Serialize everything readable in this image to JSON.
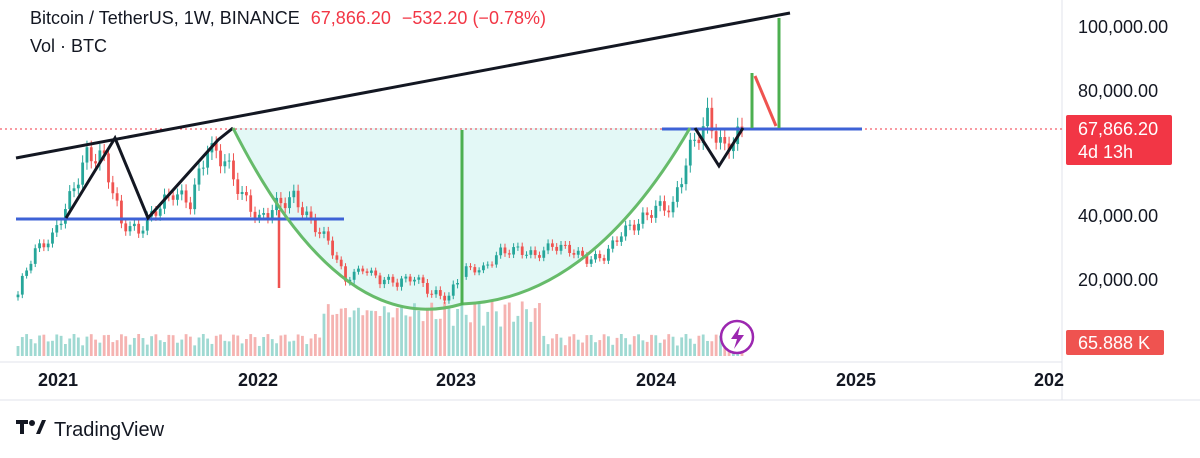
{
  "header": {
    "symbol": "Bitcoin / TetherUS, 1W, BINANCE",
    "price": "67,866.20",
    "change": "−532.20 (−0.78%)",
    "volume_label": "Vol · BTC"
  },
  "price_tag": {
    "price": "67,866.20",
    "countdown": "4d 13h"
  },
  "volume_tag": "65.888 K",
  "footer": {
    "brand": "TradingView"
  },
  "colors": {
    "up": "#26a69a",
    "down": "#ef5350",
    "tag": "#f23645",
    "cup": "#66bb6a",
    "support": "#3d62d6",
    "trend": "#131722"
  },
  "chart_data": {
    "type": "candlestick",
    "y_ticks": [
      "100,000.00",
      "80,000.00",
      "40,000.00",
      "20,000.00"
    ],
    "x_ticks": [
      "2021",
      "2022",
      "2023",
      "2024",
      "2025",
      "202"
    ],
    "last_price": 67866.2,
    "series_close": [
      {
        "date": "2020-11",
        "close": 17000
      },
      {
        "date": "2020-12",
        "close": 28900
      },
      {
        "date": "2021-01",
        "close": 33100
      },
      {
        "date": "2021-02",
        "close": 45200
      },
      {
        "date": "2021-03",
        "close": 58800
      },
      {
        "date": "2021-04",
        "close": 57700
      },
      {
        "date": "2021-05",
        "close": 37300
      },
      {
        "date": "2021-06",
        "close": 35000
      },
      {
        "date": "2021-07",
        "close": 41500
      },
      {
        "date": "2021-08",
        "close": 47100
      },
      {
        "date": "2021-09",
        "close": 43800
      },
      {
        "date": "2021-10",
        "close": 61300
      },
      {
        "date": "2021-11",
        "close": 57000
      },
      {
        "date": "2021-12",
        "close": 46200
      },
      {
        "date": "2022-01",
        "close": 38500
      },
      {
        "date": "2022-02",
        "close": 43200
      },
      {
        "date": "2022-03",
        "close": 45500
      },
      {
        "date": "2022-04",
        "close": 37700
      },
      {
        "date": "2022-05",
        "close": 31800
      },
      {
        "date": "2022-06",
        "close": 19900
      },
      {
        "date": "2022-07",
        "close": 23300
      },
      {
        "date": "2022-08",
        "close": 20000
      },
      {
        "date": "2022-09",
        "close": 19400
      },
      {
        "date": "2022-10",
        "close": 20500
      },
      {
        "date": "2022-11",
        "close": 17200
      },
      {
        "date": "2022-12",
        "close": 16500
      },
      {
        "date": "2023-01",
        "close": 23100
      },
      {
        "date": "2023-02",
        "close": 23100
      },
      {
        "date": "2023-03",
        "close": 28500
      },
      {
        "date": "2023-04",
        "close": 29200
      },
      {
        "date": "2023-05",
        "close": 27200
      },
      {
        "date": "2023-06",
        "close": 30500
      },
      {
        "date": "2023-07",
        "close": 29200
      },
      {
        "date": "2023-08",
        "close": 26000
      },
      {
        "date": "2023-09",
        "close": 27000
      },
      {
        "date": "2023-10",
        "close": 34500
      },
      {
        "date": "2023-11",
        "close": 37700
      },
      {
        "date": "2023-12",
        "close": 42300
      },
      {
        "date": "2024-01",
        "close": 42600
      },
      {
        "date": "2024-02",
        "close": 61200
      },
      {
        "date": "2024-03",
        "close": 71300
      },
      {
        "date": "2024-04",
        "close": 60600
      },
      {
        "date": "2024-05",
        "close": 67866
      }
    ]
  }
}
